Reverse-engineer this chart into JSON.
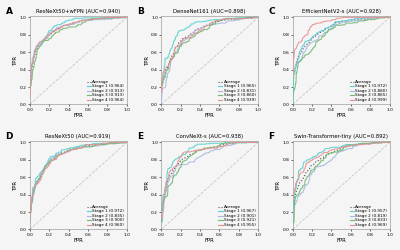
{
  "panels": [
    {
      "label": "A",
      "title": "ResNeXt50+wFPN (AUC=0.940)",
      "stages": [
        {
          "name": "Stage 1",
          "auc": 0.964,
          "color": "#56d0d0"
        },
        {
          "name": "Stage 2",
          "auc": 0.913,
          "color": "#a8b8e0"
        },
        {
          "name": "Stage 3",
          "auc": 0.913,
          "color": "#70b870"
        },
        {
          "name": "Stage 4",
          "auc": 0.964,
          "color": "#e89090"
        }
      ]
    },
    {
      "label": "B",
      "title": "DenseNet161 (AUC=0.898)",
      "stages": [
        {
          "name": "Stage 1",
          "auc": 0.965,
          "color": "#56d0d0"
        },
        {
          "name": "Stage 2",
          "auc": 0.831,
          "color": "#a8b8e0"
        },
        {
          "name": "Stage 3",
          "auc": 0.86,
          "color": "#70b870"
        },
        {
          "name": "Stage 4",
          "auc": 0.939,
          "color": "#e89090"
        }
      ]
    },
    {
      "label": "C",
      "title": "EfficientNetV2-s (AUC=0.928)",
      "stages": [
        {
          "name": "Stage 1",
          "auc": 0.972,
          "color": "#56d0d0"
        },
        {
          "name": "Stage 2",
          "auc": 0.88,
          "color": "#a8b8e0"
        },
        {
          "name": "Stage 3",
          "auc": 0.865,
          "color": "#70b870"
        },
        {
          "name": "Stage 4",
          "auc": 0.999,
          "color": "#e89090"
        }
      ]
    },
    {
      "label": "D",
      "title": "ResNeXt50 (AUC=0.919)",
      "stages": [
        {
          "name": "Stage 1",
          "auc": 0.972,
          "color": "#56d0d0"
        },
        {
          "name": "Stage 2",
          "auc": 0.835,
          "color": "#a8b8e0"
        },
        {
          "name": "Stage 3",
          "auc": 0.9,
          "color": "#70b870"
        },
        {
          "name": "Stage 4",
          "auc": 0.96,
          "color": "#e89090"
        }
      ]
    },
    {
      "label": "E",
      "title": "ConvNeXt-s (AUC=0.938)",
      "stages": [
        {
          "name": "Stage 1",
          "auc": 0.967,
          "color": "#56d0d0"
        },
        {
          "name": "Stage 2",
          "auc": 0.901,
          "color": "#a8b8e0"
        },
        {
          "name": "Stage 3",
          "auc": 0.921,
          "color": "#70b870"
        },
        {
          "name": "Stage 4",
          "auc": 0.955,
          "color": "#e89090"
        }
      ]
    },
    {
      "label": "F",
      "title": "Swin-Transformer-tiny (AUC=0.892)",
      "stages": [
        {
          "name": "Stage 1",
          "auc": 0.957,
          "color": "#56d0d0"
        },
        {
          "name": "Stage 2",
          "auc": 0.819,
          "color": "#a8b8e0"
        },
        {
          "name": "Stage 3",
          "auc": 0.833,
          "color": "#70b870"
        },
        {
          "name": "Stage 4",
          "auc": 0.969,
          "color": "#e89090"
        }
      ]
    }
  ],
  "average_color": "#555555",
  "diagonal_color": "#bbbbbb",
  "background": "#f5f5f5"
}
